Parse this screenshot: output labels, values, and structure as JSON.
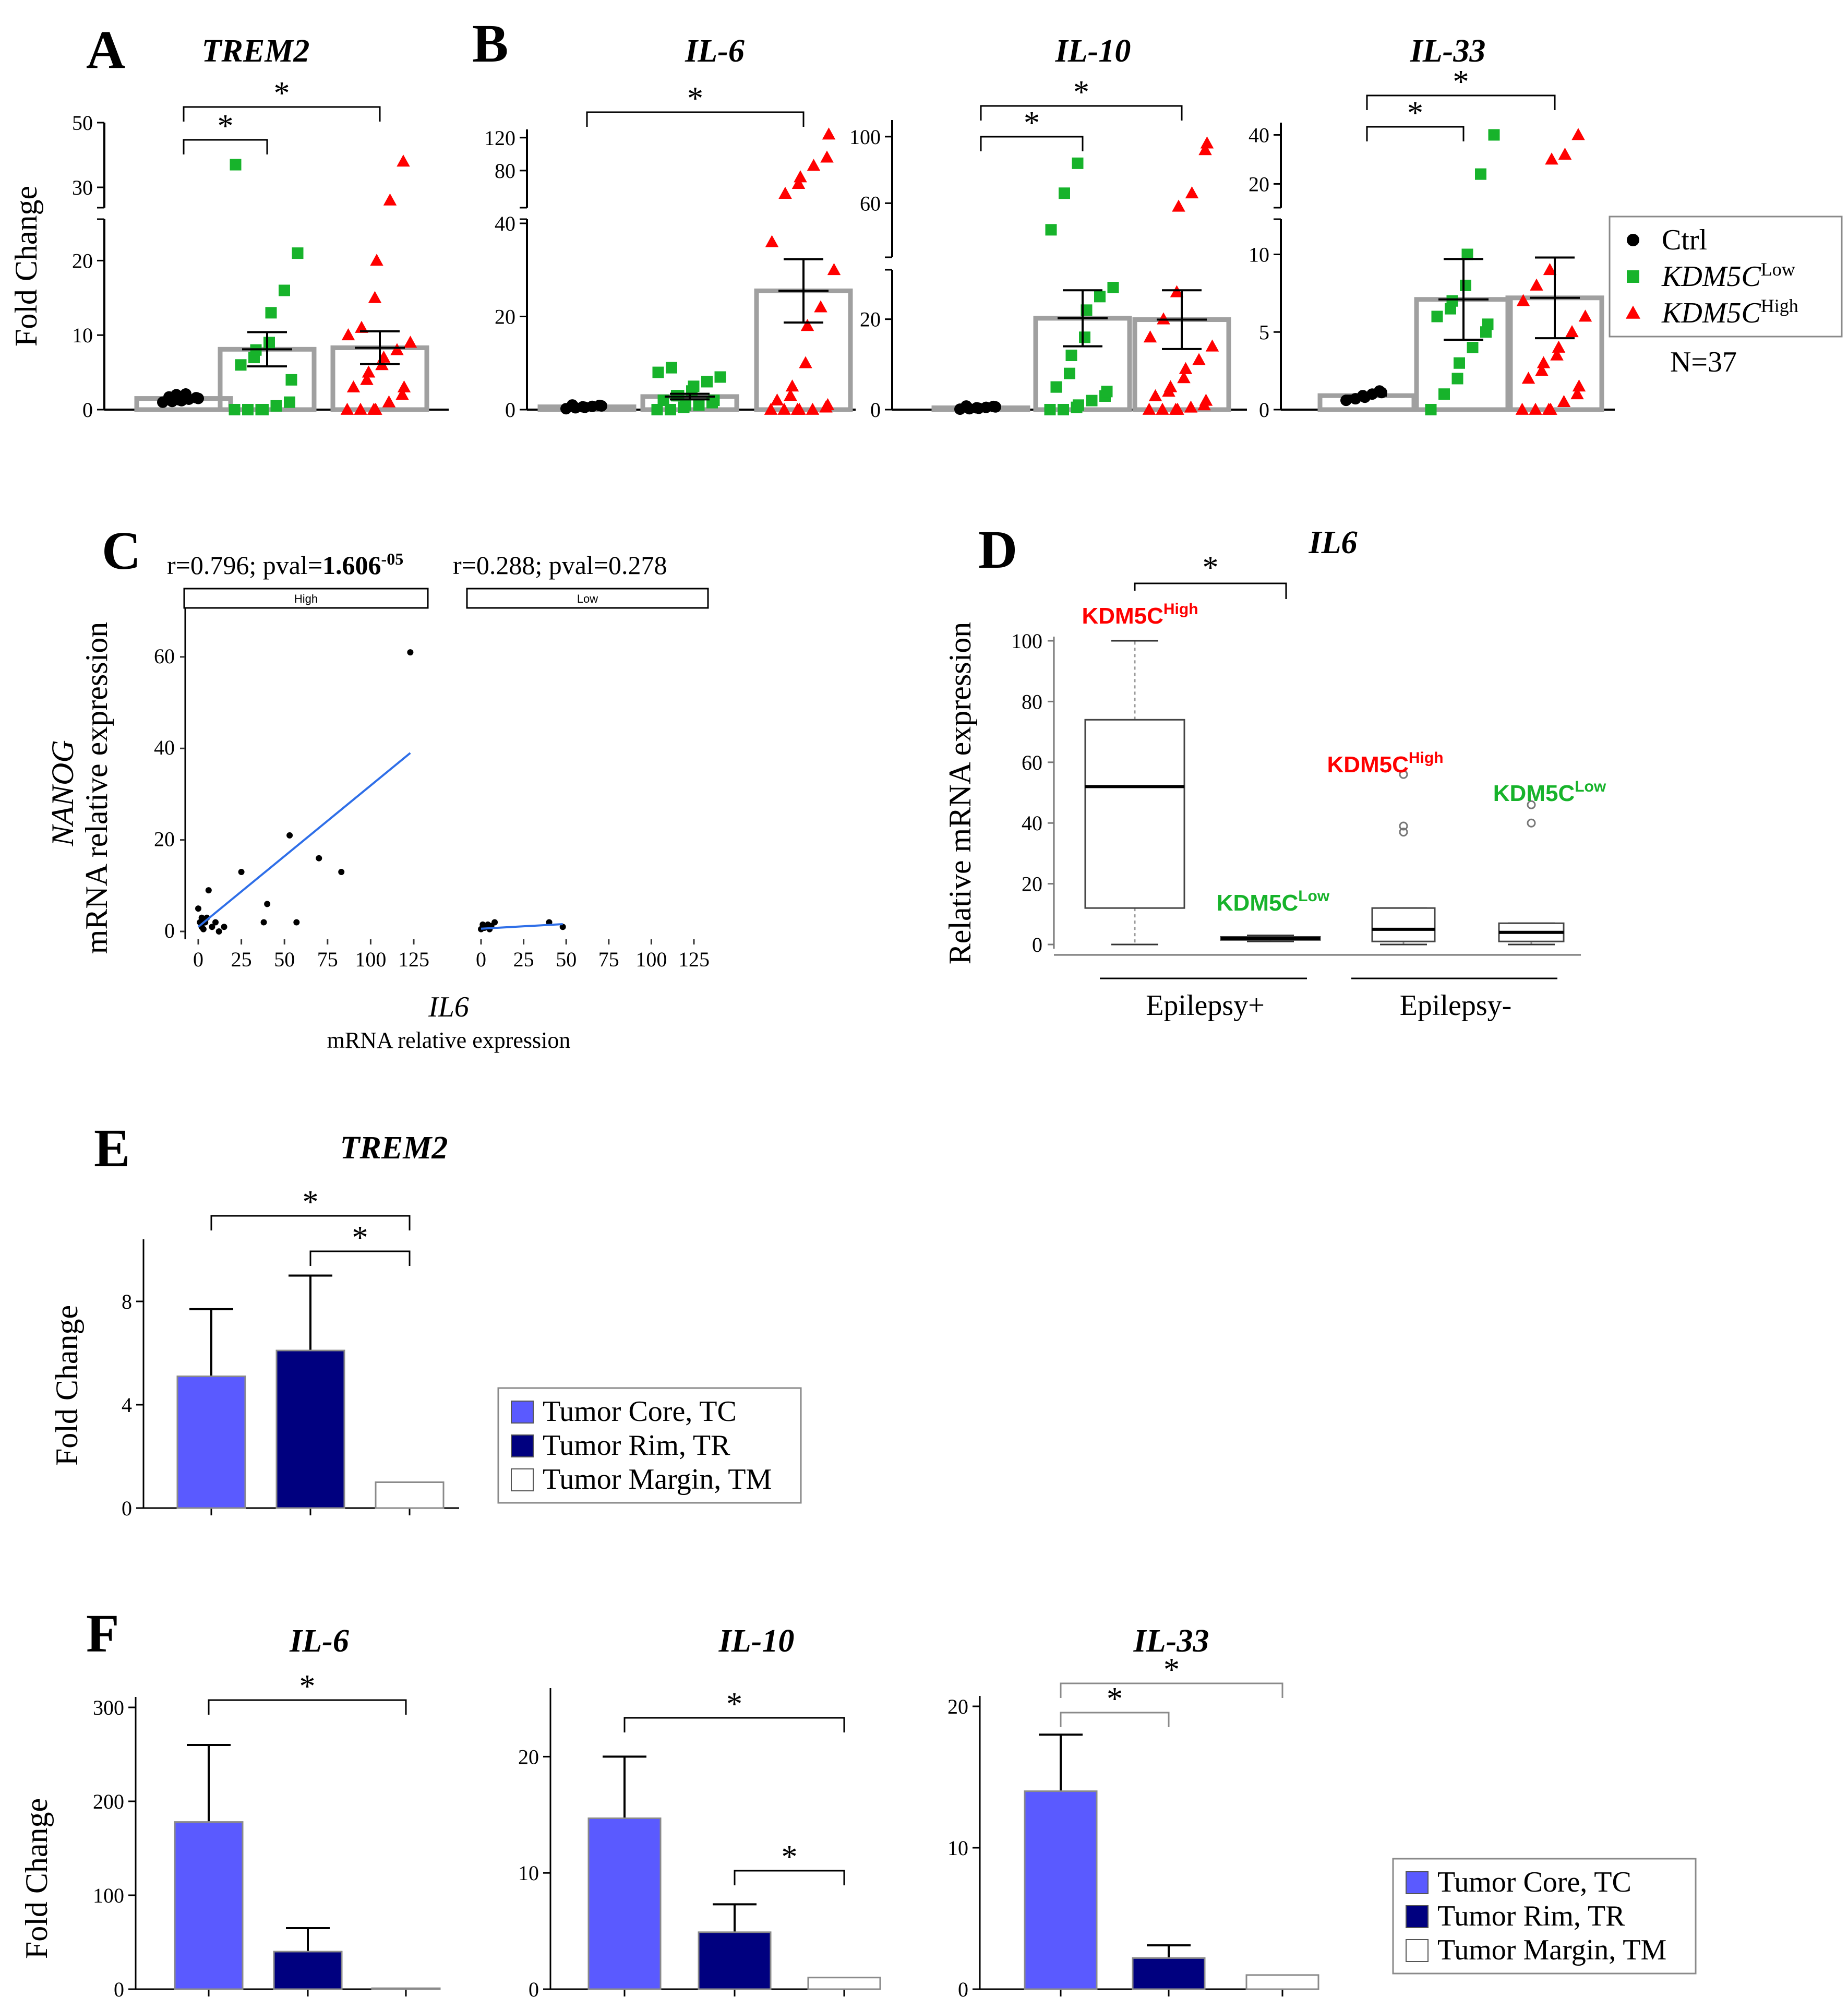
{
  "figure": {
    "colors": {
      "ctrl": "#000000",
      "low": "#17b32b",
      "high": "#ff0000",
      "tc": "#5a5aff",
      "tr": "#00007f",
      "tm": "#ffffff",
      "bar_edge": "#a0a0a0",
      "fit_line": "#2f6fe8"
    },
    "panels": {
      "A": "A",
      "B": "B",
      "C": "C",
      "D": "D",
      "E": "E",
      "F": "F"
    },
    "legend_ab": {
      "items": [
        {
          "label": "Ctrl",
          "sup": ""
        },
        {
          "label": "KDM5C",
          "sup": "Low"
        },
        {
          "label": "KDM5C",
          "sup": "High"
        }
      ],
      "n": "N=37"
    },
    "legend_tumor": {
      "items": [
        "Tumor Core, TC",
        "Tumor Rim, TR",
        "Tumor Margin, TM"
      ]
    },
    "fold_change_label": "Fold Change",
    "star": "*"
  },
  "chart_data": [
    {
      "id": "A-TREM2",
      "type": "bar+scatter",
      "title": "TREM2",
      "ylabel": "Fold Change",
      "broken_axis": {
        "lower": [
          0,
          25
        ],
        "upper": [
          25,
          50
        ]
      },
      "lower_ticks": [
        0,
        10,
        20
      ],
      "upper_ticks": [
        30,
        50
      ],
      "groups": [
        "Ctrl",
        "KDM5C Low",
        "KDM5C High"
      ],
      "means": [
        1.5,
        8.1,
        8.3
      ],
      "sem": [
        0.2,
        2.3,
        2.2
      ],
      "points": [
        [
          1.0,
          1.1,
          1.2,
          1.3,
          1.4,
          1.5,
          1.6,
          1.7,
          1.8,
          2.0,
          2.1
        ],
        [
          0,
          0,
          0,
          0,
          0.5,
          1,
          4,
          6,
          7,
          8,
          9,
          13,
          16,
          21,
          37
        ],
        [
          0,
          0,
          0,
          0,
          1,
          2,
          3,
          3,
          4,
          5,
          6,
          7,
          8,
          9,
          10,
          11,
          15,
          20,
          26,
          38
        ]
      ],
      "significance": [
        {
          "from": 0,
          "to": 1,
          "label": "*"
        },
        {
          "from": 0,
          "to": 2,
          "label": "*"
        }
      ]
    },
    {
      "id": "B-IL6",
      "type": "bar+scatter",
      "title": "IL-6",
      "broken_axis": {
        "lower": [
          0,
          40
        ],
        "upper": [
          40,
          130
        ]
      },
      "lower_ticks": [
        0,
        20,
        40
      ],
      "upper_ticks": [
        80,
        120
      ],
      "groups": [
        "Ctrl",
        "KDM5C Low",
        "KDM5C High"
      ],
      "means": [
        0.6,
        2.8,
        25.5
      ],
      "sem": [
        0.1,
        0.6,
        6.8
      ],
      "points": [
        [
          0.2,
          0.4,
          0.5,
          0.6,
          0.7,
          0.8,
          0.9,
          1.0
        ],
        [
          0,
          0,
          0.5,
          1,
          1,
          1.5,
          2,
          2,
          3,
          3,
          4,
          5,
          6,
          7,
          8,
          9
        ],
        [
          0,
          0,
          0,
          0,
          0,
          0.5,
          1,
          2,
          3,
          5,
          10,
          18,
          22,
          30,
          36,
          52,
          64,
          72,
          86,
          96,
          124
        ]
      ],
      "significance": [
        {
          "from": 0,
          "to": 2,
          "label": "*"
        }
      ]
    },
    {
      "id": "B-IL10",
      "type": "bar+scatter",
      "title": "IL-10",
      "broken_axis": {
        "lower": [
          0,
          30
        ],
        "upper": [
          30,
          110
        ]
      },
      "lower_ticks": [
        0,
        20
      ],
      "upper_ticks": [
        60,
        100
      ],
      "groups": [
        "Ctrl",
        "KDM5C Low",
        "KDM5C High"
      ],
      "means": [
        0.4,
        20.2,
        19.9
      ],
      "sem": [
        0.1,
        6.2,
        6.5
      ],
      "points": [
        [
          0.1,
          0.2,
          0.3,
          0.4,
          0.5,
          0.6,
          0.7,
          0.8
        ],
        [
          0,
          0,
          0.5,
          1,
          2,
          3,
          4,
          5,
          8,
          12,
          16,
          22,
          25,
          27,
          44,
          66,
          84
        ],
        [
          0,
          0,
          0,
          0,
          0.5,
          1,
          2,
          3,
          4,
          5,
          7,
          9,
          11,
          14,
          16,
          20,
          26,
          58,
          66,
          92,
          96
        ]
      ],
      "significance": [
        {
          "from": 0,
          "to": 1,
          "label": "*"
        },
        {
          "from": 0,
          "to": 2,
          "label": "*"
        }
      ]
    },
    {
      "id": "B-IL33",
      "type": "bar+scatter",
      "title": "IL-33",
      "broken_axis": {
        "lower": [
          0,
          12
        ],
        "upper": [
          12,
          45
        ]
      },
      "lower_ticks": [
        0,
        5,
        10
      ],
      "upper_ticks": [
        20,
        40
      ],
      "groups": [
        "Ctrl",
        "KDM5C Low",
        "KDM5C High"
      ],
      "means": [
        0.9,
        7.1,
        7.2
      ],
      "sem": [
        0.1,
        2.6,
        2.6
      ],
      "points": [
        [
          0.6,
          0.7,
          0.8,
          0.9,
          1.0,
          1.1,
          1.2
        ],
        [
          0,
          1,
          2,
          3,
          4,
          5,
          5.5,
          6,
          6.5,
          7,
          8,
          10,
          24,
          40
        ],
        [
          0,
          0,
          0,
          0,
          0.5,
          1,
          1.5,
          2,
          2.5,
          3,
          3.5,
          4,
          5,
          6,
          7,
          8,
          9,
          30,
          32,
          40
        ]
      ],
      "significance": [
        {
          "from": 0,
          "to": 1,
          "label": "*"
        },
        {
          "from": 0,
          "to": 2,
          "label": "*"
        }
      ]
    },
    {
      "id": "C",
      "type": "scatter",
      "xlabel": "IL6",
      "xlabel2": "mRNA relative expression",
      "ylabel": "NANOG",
      "ylabel2": "mRNA relative expression",
      "xlim": [
        0,
        125
      ],
      "ylim": [
        0,
        65
      ],
      "x_ticks": [
        0,
        25,
        50,
        75,
        100,
        125
      ],
      "y_ticks": [
        0,
        20,
        40,
        60
      ],
      "facets": [
        {
          "strip": "High",
          "stats_pre": "r=0.796; pval=",
          "stats_bold": "1.606",
          "stats_sup": "-05",
          "points": [
            [
              0,
              5
            ],
            [
              1,
              2
            ],
            [
              2,
              1
            ],
            [
              2,
              3
            ],
            [
              3,
              0.5
            ],
            [
              4,
              2
            ],
            [
              5,
              3
            ],
            [
              6,
              9
            ],
            [
              8,
              1
            ],
            [
              10,
              2
            ],
            [
              12,
              0
            ],
            [
              15,
              1
            ],
            [
              25,
              13
            ],
            [
              38,
              2
            ],
            [
              40,
              6
            ],
            [
              53,
              21
            ],
            [
              57,
              2
            ],
            [
              70,
              16
            ],
            [
              83,
              13
            ],
            [
              123,
              61
            ]
          ],
          "fit": [
            [
              0,
              1
            ],
            [
              123,
              39
            ]
          ]
        },
        {
          "strip": "Low",
          "stats_pre": "r=0.288; pval=0.278",
          "stats_bold": "",
          "stats_sup": "",
          "points": [
            [
              0,
              0.5
            ],
            [
              1,
              1.5
            ],
            [
              2,
              0.8
            ],
            [
              4,
              1.5
            ],
            [
              5,
              0.5
            ],
            [
              6,
              1.2
            ],
            [
              8,
              2
            ],
            [
              40,
              2
            ],
            [
              48,
              1
            ]
          ],
          "fit": [
            [
              0,
              0.6
            ],
            [
              48,
              1.6
            ]
          ]
        }
      ]
    },
    {
      "id": "D",
      "type": "box",
      "title": "IL6",
      "ylabel": "Relative mRNA expression",
      "ylim": [
        0,
        100
      ],
      "y_ticks": [
        0,
        20,
        40,
        60,
        80,
        100
      ],
      "boxes": [
        {
          "group": "High",
          "label": "KDM5C",
          "sup": "High",
          "min": 0,
          "q1": 12,
          "median": 52,
          "q3": 74,
          "max": 100,
          "outliers": []
        },
        {
          "group": "Low",
          "label": "KDM5C",
          "sup": "Low",
          "min": 1,
          "q1": 1.5,
          "median": 2,
          "q3": 2.5,
          "max": 3,
          "outliers": []
        },
        {
          "group": "High",
          "label": "KDM5C",
          "sup": "High",
          "min": 0,
          "q1": 1,
          "median": 5,
          "q3": 12,
          "max": 12,
          "outliers": [
            37,
            39,
            56
          ]
        },
        {
          "group": "Low",
          "label": "KDM5C",
          "sup": "Low",
          "min": 0,
          "q1": 1,
          "median": 4,
          "q3": 7,
          "max": 7,
          "outliers": [
            40,
            46
          ]
        }
      ],
      "x_groups": [
        "Epilepsy+",
        "Epilepsy-"
      ],
      "significance": [
        {
          "from": 0,
          "to": 1,
          "label": "*"
        }
      ]
    },
    {
      "id": "E-TREM2",
      "type": "bar",
      "title": "TREM2",
      "ylabel": "Fold Change",
      "ylim": [
        0,
        10
      ],
      "y_ticks": [
        0,
        4,
        8
      ],
      "categories": [
        "Tumor Core, TC",
        "Tumor Rim, TR",
        "Tumor Margin, TM"
      ],
      "values": [
        5.1,
        6.1,
        1.0
      ],
      "err": [
        2.6,
        2.9,
        0
      ],
      "significance": [
        {
          "from": 0,
          "to": 2,
          "label": "*"
        },
        {
          "from": 1,
          "to": 2,
          "label": "*"
        }
      ]
    },
    {
      "id": "F-IL6",
      "type": "bar",
      "title": "IL-6",
      "ylabel": "Fold Change",
      "ylim": [
        0,
        300
      ],
      "y_ticks": [
        0,
        100,
        200,
        300
      ],
      "categories": [
        "Tumor Core, TC",
        "Tumor Rim, TR",
        "Tumor Margin, TM"
      ],
      "values": [
        178,
        40,
        1
      ],
      "err": [
        82,
        25,
        0
      ],
      "significance": [
        {
          "from": 0,
          "to": 2,
          "label": "*"
        }
      ]
    },
    {
      "id": "F-IL10",
      "type": "bar",
      "title": "IL-10",
      "ylim": [
        0,
        25
      ],
      "y_ticks": [
        0,
        10,
        20
      ],
      "categories": [
        "Tumor Core, TC",
        "Tumor Rim, TR",
        "Tumor Margin, TM"
      ],
      "values": [
        14.7,
        4.9,
        1.0
      ],
      "err": [
        5.3,
        2.4,
        0
      ],
      "significance": [
        {
          "from": 0,
          "to": 2,
          "label": "*"
        },
        {
          "from": 1,
          "to": 2,
          "label": "*"
        }
      ]
    },
    {
      "id": "F-IL33",
      "type": "bar",
      "title": "IL-33",
      "ylim": [
        0,
        20
      ],
      "y_ticks": [
        0,
        10,
        20
      ],
      "categories": [
        "Tumor Core, TC",
        "Tumor Rim, TR",
        "Tumor Margin, TM"
      ],
      "values": [
        14.0,
        2.2,
        1.0
      ],
      "err": [
        4.0,
        0.9,
        0
      ],
      "significance": [
        {
          "from": 0,
          "to": 1,
          "label": "*"
        },
        {
          "from": 0,
          "to": 2,
          "label": "*"
        }
      ]
    }
  ]
}
